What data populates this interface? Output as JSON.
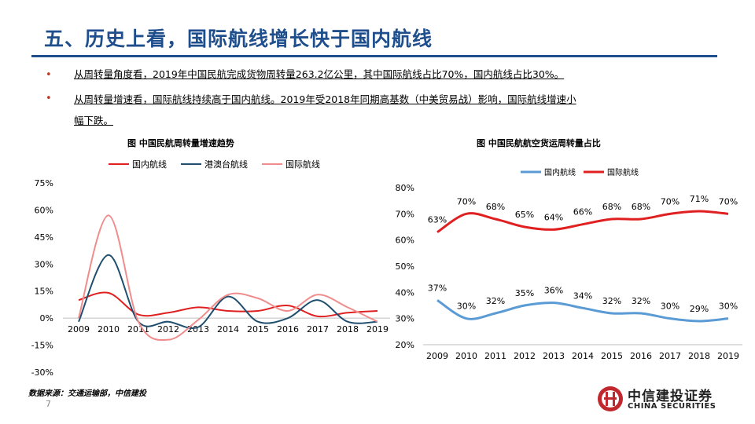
{
  "title": "五、历史上看，国际航线增长快于国内航线",
  "bullets": [
    "从周转量角度看，2019年中国民航完成货物周转量263.2亿公里，其中国际航线占比70%，国内航线占比30%。",
    "从周转量增速看，国际航线持续高于国内航线。2019年受2018年同期高基数（中美贸易战）影响，国际航线增速小",
    "幅下跌。"
  ],
  "source": "数据来源：交通运输部，中信建投",
  "page_number": "7",
  "logo": {
    "cn": "中信建投证券",
    "en": "CHINA SECURITIES"
  },
  "colors": {
    "title": "#1f4e8c",
    "red": "#e02020",
    "navy": "#1f4e6e",
    "pink": "#f08c8c",
    "blue": "#5b9bd5"
  },
  "chart_data": [
    {
      "type": "line",
      "title": "图  中国民航周转量增速趋势",
      "x": [
        "2009",
        "2010",
        "2011",
        "2012",
        "2013",
        "2014",
        "2015",
        "2016",
        "2017",
        "2018",
        "2019"
      ],
      "ylim": [
        -0.3,
        0.75
      ],
      "yticks": [
        "75%",
        "60%",
        "45%",
        "30%",
        "15%",
        "0%",
        "-15%",
        "-30%"
      ],
      "legend": "top",
      "grid": false,
      "series": [
        {
          "name": "国内航线",
          "color": "#e02020",
          "values": [
            0.1,
            0.14,
            0.02,
            0.03,
            0.06,
            0.04,
            0.04,
            0.07,
            0.01,
            0.03,
            0.04
          ]
        },
        {
          "name": "港澳台航线",
          "color": "#1f4e6e",
          "values": [
            -0.02,
            0.35,
            -0.02,
            -0.02,
            -0.05,
            0.12,
            -0.02,
            0.0,
            0.1,
            -0.02,
            -0.02
          ]
        },
        {
          "name": "国际航线",
          "color": "#f08c8c",
          "values": [
            0.0,
            0.57,
            -0.02,
            -0.12,
            -0.01,
            0.13,
            0.11,
            0.04,
            0.13,
            0.06,
            -0.02
          ]
        }
      ]
    },
    {
      "type": "line",
      "title": "图  中国民航航空货运周转量占比",
      "x": [
        "2009",
        "2010",
        "2011",
        "2012",
        "2013",
        "2014",
        "2015",
        "2016",
        "2017",
        "2018",
        "2019"
      ],
      "ylim": [
        0.2,
        0.8
      ],
      "yticks": [
        "80%",
        "70%",
        "60%",
        "50%",
        "40%",
        "30%",
        "20%"
      ],
      "legend": "top",
      "grid": false,
      "series": [
        {
          "name": "国内航线",
          "color": "#5b9bd5",
          "values": [
            0.37,
            0.3,
            0.32,
            0.35,
            0.36,
            0.34,
            0.32,
            0.32,
            0.3,
            0.29,
            0.3
          ],
          "labels": [
            "37%",
            "30%",
            "32%",
            "35%",
            "36%",
            "34%",
            "32%",
            "32%",
            "30%",
            "29%",
            "30%"
          ]
        },
        {
          "name": "国际航线",
          "color": "#e02020",
          "values": [
            0.63,
            0.7,
            0.68,
            0.65,
            0.64,
            0.66,
            0.68,
            0.68,
            0.7,
            0.71,
            0.7
          ],
          "labels": [
            "63%",
            "70%",
            "68%",
            "65%",
            "64%",
            "66%",
            "68%",
            "68%",
            "70%",
            "71%",
            "70%"
          ]
        }
      ]
    }
  ]
}
